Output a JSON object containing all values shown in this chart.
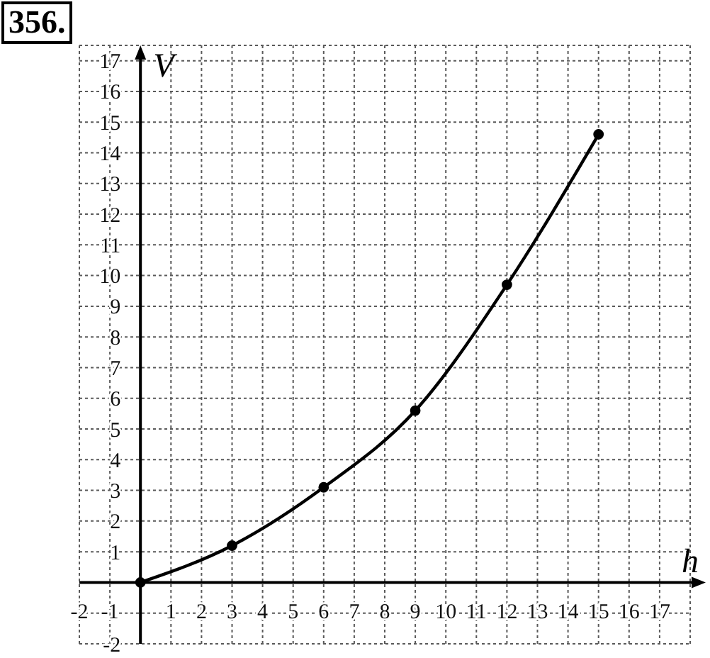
{
  "chart_data": {
    "type": "line",
    "title": "356.",
    "xlabel": "h",
    "ylabel": "V",
    "x": [
      0,
      3,
      6,
      9,
      12,
      15
    ],
    "series": [
      {
        "color": "#000000",
        "values": [
          0,
          1.2,
          3.1,
          5.6,
          9.7,
          14.6
        ]
      }
    ],
    "xlim": [
      -2,
      18
    ],
    "ylim": [
      -2,
      17.5
    ],
    "xticks": [
      -2,
      -1,
      1,
      2,
      3,
      4,
      5,
      6,
      7,
      8,
      9,
      10,
      11,
      12,
      13,
      14,
      15,
      16,
      17,
      {
        "value": 18,
        "label": null
      }
    ],
    "yticks": [
      -2,
      {
        "value": -1,
        "label": null
      },
      1,
      2,
      3,
      4,
      5,
      6,
      7,
      8,
      9,
      10,
      11,
      12,
      13,
      14,
      15,
      16,
      17
    ],
    "grid": true,
    "marker": "circle",
    "line_style": "solid"
  }
}
